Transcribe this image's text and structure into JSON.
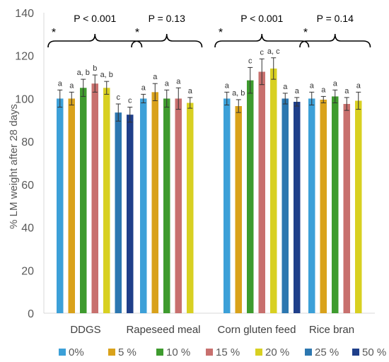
{
  "chart_data": {
    "type": "bar",
    "ylabel": "% LM weight after 28 days",
    "ylim": [
      0,
      140
    ],
    "yticks": [
      0,
      20,
      40,
      60,
      80,
      100,
      120,
      140
    ],
    "grid": false,
    "legend_position": "bottom",
    "categories": [
      "DDGS",
      "Rapeseed meal",
      "Corn gluten feed",
      "Rice bran"
    ],
    "series": [
      {
        "name": "0%",
        "color": "#3CA0D8",
        "values": [
          100,
          100,
          100,
          100
        ],
        "errors": [
          4,
          2,
          3,
          3
        ],
        "letters": [
          "a",
          "a",
          "a",
          "a"
        ]
      },
      {
        "name": "5 %",
        "color": "#D9A21B",
        "values": [
          100,
          103,
          96.5,
          99.5
        ],
        "errors": [
          3,
          4,
          3,
          1.5
        ],
        "letters": [
          "a",
          "a",
          "a, b",
          "a"
        ]
      },
      {
        "name": "10 %",
        "color": "#3E9B2E",
        "values": [
          105,
          100,
          108.5,
          101
        ],
        "errors": [
          4,
          4,
          6,
          3
        ],
        "letters": [
          "a, b",
          "a",
          "c",
          "a"
        ]
      },
      {
        "name": "15 %",
        "color": "#C8706E",
        "values": [
          107,
          100,
          112.5,
          97.5
        ],
        "errors": [
          4,
          5,
          6,
          3
        ],
        "letters": [
          "b",
          "a",
          "c",
          "a"
        ]
      },
      {
        "name": "20 %",
        "color": "#D8D021",
        "values": [
          105,
          98,
          114,
          99
        ],
        "errors": [
          3,
          2.5,
          5,
          4
        ],
        "letters": [
          "a, b",
          "a",
          "a, c",
          "a"
        ]
      },
      {
        "name": "25 %",
        "color": "#2C77B0",
        "values": [
          93.5,
          null,
          100,
          null
        ],
        "errors": [
          4,
          0,
          2.5,
          0
        ],
        "letters": [
          "c",
          "",
          "a",
          ""
        ]
      },
      {
        "name": "50 %",
        "color": "#1F3F8A",
        "values": [
          92.5,
          null,
          98.5,
          null
        ],
        "errors": [
          3.5,
          0,
          2,
          0
        ],
        "letters": [
          "c",
          "",
          "a",
          ""
        ]
      }
    ],
    "annotations": [
      {
        "group": 0,
        "text": "P < 0.001",
        "star": "*"
      },
      {
        "group": 1,
        "text": "P = 0.13",
        "star": "*"
      },
      {
        "group": 2,
        "text": "P < 0.001",
        "star": "*"
      },
      {
        "group": 3,
        "text": "P = 0.14",
        "star": "*"
      }
    ]
  }
}
